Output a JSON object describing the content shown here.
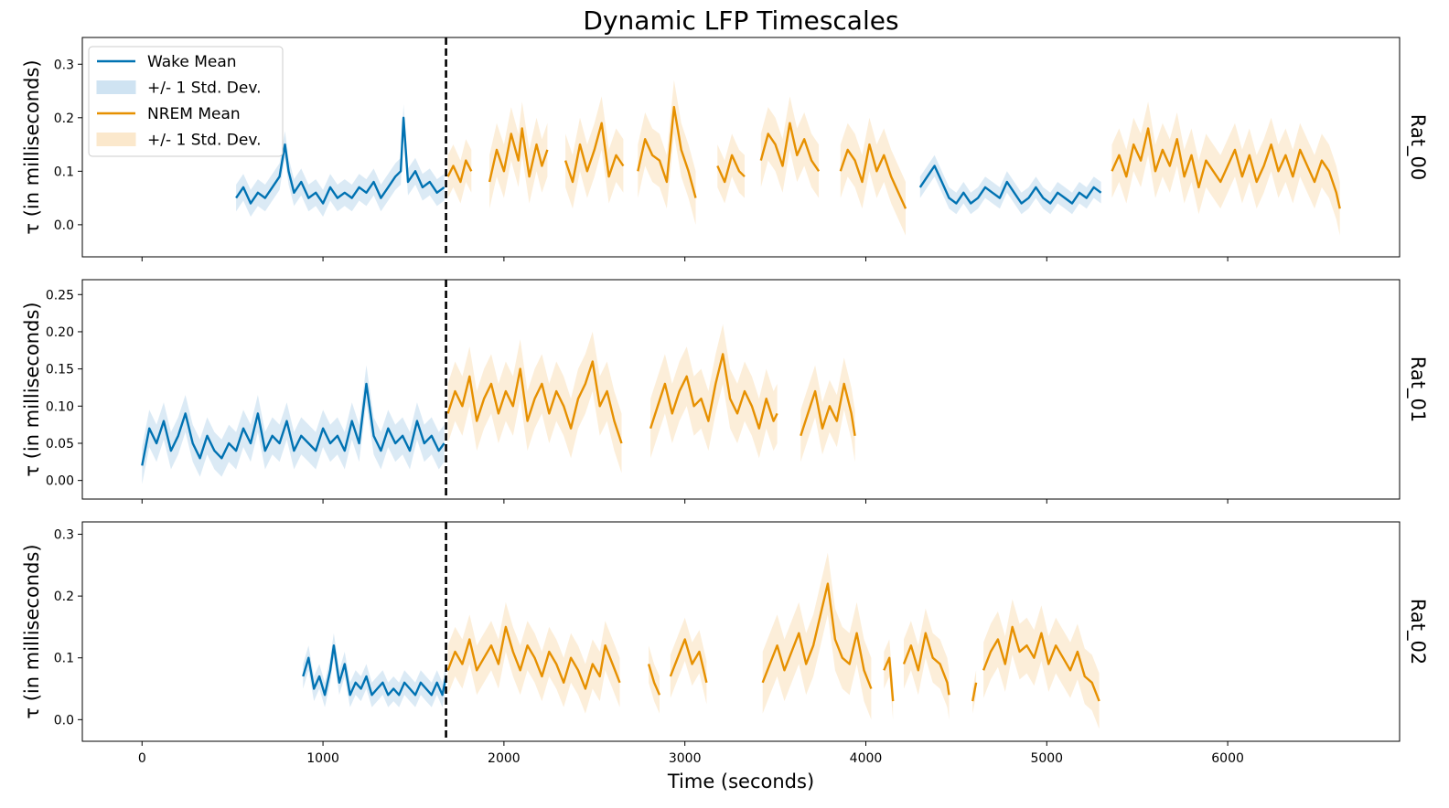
{
  "chart_data": {
    "type": "line",
    "title": "Dynamic LFP Timescales",
    "xlabel": "Time (seconds)",
    "xlim": [
      -330,
      6950
    ],
    "xticks": [
      0,
      1000,
      2000,
      3000,
      4000,
      5000,
      6000
    ],
    "sleep_onset_marker_x": 1680,
    "colors": {
      "wake": "#0072b2",
      "nrem": "#e69000",
      "wake_band": "#cfe3f2",
      "nrem_band": "#fbe8cc",
      "marker": "#000000"
    },
    "legend": {
      "placement": "top-left",
      "entries": [
        {
          "label": "Wake Mean",
          "kind": "line",
          "state": "wake"
        },
        {
          "label": "+/- 1 Std. Dev.",
          "kind": "band",
          "state": "wake"
        },
        {
          "label": "NREM Mean",
          "kind": "line",
          "state": "nrem"
        },
        {
          "label": "+/- 1 Std. Dev.",
          "kind": "band",
          "state": "nrem"
        }
      ]
    },
    "panels": [
      {
        "name": "Rat_00",
        "ylabel": "τ (in milliseconds)",
        "ylim": [
          -0.06,
          0.35
        ],
        "yticks": [
          0.0,
          0.1,
          0.2,
          0.3
        ],
        "ytick_labels": [
          "0.0",
          "0.1",
          "0.2",
          "0.3"
        ],
        "series": [
          {
            "state": "wake",
            "x": [
              520,
              560,
              600,
              640,
              680,
              720,
              760,
              790,
              810,
              840,
              880,
              920,
              960,
              1000,
              1040,
              1080,
              1120,
              1160,
              1200,
              1240,
              1280,
              1320,
              1360,
              1400,
              1430,
              1445,
              1470,
              1510,
              1550,
              1590,
              1630,
              1670
            ],
            "y": [
              0.05,
              0.07,
              0.04,
              0.06,
              0.05,
              0.07,
              0.09,
              0.15,
              0.1,
              0.06,
              0.08,
              0.05,
              0.06,
              0.04,
              0.07,
              0.05,
              0.06,
              0.05,
              0.07,
              0.06,
              0.08,
              0.05,
              0.07,
              0.09,
              0.1,
              0.2,
              0.08,
              0.1,
              0.07,
              0.08,
              0.06,
              0.07
            ],
            "sd": 0.025
          },
          {
            "state": "nrem",
            "x": [
              1690,
              1720,
              1760,
              1790,
              1820
            ],
            "y": [
              0.09,
              0.11,
              0.08,
              0.12,
              0.1
            ],
            "sd": 0.04
          },
          {
            "state": "nrem",
            "x": [
              1920,
              1960,
              2000,
              2040,
              2080,
              2100,
              2140,
              2180,
              2210,
              2240
            ],
            "y": [
              0.08,
              0.14,
              0.1,
              0.17,
              0.12,
              0.18,
              0.09,
              0.15,
              0.11,
              0.14
            ],
            "sd": 0.05
          },
          {
            "state": "nrem",
            "x": [
              2340,
              2380,
              2420,
              2460,
              2500,
              2540,
              2580,
              2620,
              2660
            ],
            "y": [
              0.12,
              0.08,
              0.15,
              0.1,
              0.14,
              0.19,
              0.09,
              0.13,
              0.11
            ],
            "sd": 0.05
          },
          {
            "state": "nrem",
            "x": [
              2740,
              2780,
              2820,
              2860,
              2900,
              2940,
              2980,
              3020,
              3060
            ],
            "y": [
              0.1,
              0.16,
              0.13,
              0.12,
              0.08,
              0.22,
              0.14,
              0.1,
              0.05
            ],
            "sd": 0.05
          },
          {
            "state": "nrem",
            "x": [
              3180,
              3220,
              3260,
              3300,
              3330
            ],
            "y": [
              0.11,
              0.08,
              0.13,
              0.1,
              0.09
            ],
            "sd": 0.04
          },
          {
            "state": "nrem",
            "x": [
              3420,
              3460,
              3500,
              3540,
              3580,
              3620,
              3660,
              3700,
              3740
            ],
            "y": [
              0.12,
              0.17,
              0.15,
              0.11,
              0.19,
              0.13,
              0.16,
              0.12,
              0.1
            ],
            "sd": 0.05
          },
          {
            "state": "nrem",
            "x": [
              3860,
              3900,
              3940,
              3980,
              4020,
              4060,
              4100,
              4140,
              4180,
              4220
            ],
            "y": [
              0.1,
              0.14,
              0.12,
              0.08,
              0.15,
              0.1,
              0.13,
              0.09,
              0.06,
              0.03
            ],
            "sd": 0.05
          },
          {
            "state": "wake",
            "x": [
              4300,
              4340,
              4380,
              4420,
              4460,
              4500,
              4540,
              4580,
              4620,
              4660,
              4700,
              4740,
              4780,
              4820,
              4860,
              4900,
              4940,
              4980,
              5020,
              5060,
              5100,
              5140,
              5180,
              5220,
              5260,
              5300
            ],
            "y": [
              0.07,
              0.09,
              0.11,
              0.08,
              0.05,
              0.04,
              0.06,
              0.04,
              0.05,
              0.07,
              0.06,
              0.05,
              0.08,
              0.06,
              0.04,
              0.05,
              0.07,
              0.05,
              0.04,
              0.06,
              0.05,
              0.04,
              0.06,
              0.05,
              0.07,
              0.06
            ],
            "sd": 0.02
          },
          {
            "state": "nrem",
            "x": [
              5360,
              5400,
              5440,
              5480,
              5520,
              5560,
              5600,
              5640,
              5680,
              5720,
              5760,
              5800,
              5840,
              5880,
              5920,
              5960,
              6000,
              6040,
              6080,
              6120,
              6160,
              6200,
              6240,
              6280,
              6320,
              6360,
              6400,
              6440,
              6480,
              6520,
              6560,
              6600,
              6620
            ],
            "y": [
              0.1,
              0.13,
              0.09,
              0.15,
              0.12,
              0.18,
              0.1,
              0.14,
              0.11,
              0.16,
              0.09,
              0.13,
              0.07,
              0.12,
              0.1,
              0.08,
              0.11,
              0.14,
              0.09,
              0.13,
              0.08,
              0.11,
              0.15,
              0.1,
              0.13,
              0.09,
              0.14,
              0.11,
              0.08,
              0.12,
              0.1,
              0.06,
              0.03
            ],
            "sd": 0.05
          }
        ]
      },
      {
        "name": "Rat_01",
        "ylabel": "τ (in milliseconds)",
        "ylim": [
          -0.025,
          0.27
        ],
        "yticks": [
          0.0,
          0.05,
          0.1,
          0.15,
          0.2,
          0.25
        ],
        "ytick_labels": [
          "0.00",
          "0.05",
          "0.10",
          "0.15",
          "0.20",
          "0.25"
        ],
        "series": [
          {
            "state": "wake",
            "x": [
              0,
              40,
              80,
              120,
              160,
              200,
              240,
              280,
              320,
              360,
              400,
              440,
              480,
              520,
              560,
              600,
              640,
              680,
              720,
              760,
              800,
              840,
              880,
              920,
              960,
              1000,
              1040,
              1080,
              1120,
              1160,
              1200,
              1240,
              1280,
              1320,
              1360,
              1400,
              1440,
              1480,
              1520,
              1560,
              1600,
              1640,
              1670
            ],
            "y": [
              0.02,
              0.07,
              0.05,
              0.08,
              0.04,
              0.06,
              0.09,
              0.05,
              0.03,
              0.06,
              0.04,
              0.03,
              0.05,
              0.04,
              0.07,
              0.05,
              0.09,
              0.04,
              0.06,
              0.05,
              0.08,
              0.04,
              0.06,
              0.05,
              0.04,
              0.07,
              0.05,
              0.06,
              0.04,
              0.08,
              0.05,
              0.13,
              0.06,
              0.04,
              0.07,
              0.05,
              0.06,
              0.04,
              0.08,
              0.05,
              0.06,
              0.04,
              0.05
            ],
            "sd": 0.025
          },
          {
            "state": "nrem",
            "x": [
              1690,
              1730,
              1770,
              1810,
              1850,
              1890,
              1930,
              1970,
              2010,
              2050,
              2090,
              2130,
              2170,
              2210,
              2250,
              2290,
              2330,
              2370,
              2410,
              2450,
              2490,
              2530,
              2570,
              2610,
              2650
            ],
            "y": [
              0.09,
              0.12,
              0.1,
              0.14,
              0.08,
              0.11,
              0.13,
              0.09,
              0.12,
              0.1,
              0.15,
              0.08,
              0.11,
              0.13,
              0.09,
              0.12,
              0.1,
              0.07,
              0.11,
              0.13,
              0.16,
              0.1,
              0.12,
              0.08,
              0.05
            ],
            "sd": 0.04
          },
          {
            "state": "nrem",
            "x": [
              2810,
              2850,
              2890,
              2930,
              2970,
              3010,
              3050,
              3090,
              3130,
              3170,
              3210,
              3250,
              3290,
              3330,
              3370,
              3410,
              3450,
              3490,
              3510
            ],
            "y": [
              0.07,
              0.1,
              0.13,
              0.09,
              0.12,
              0.14,
              0.1,
              0.11,
              0.08,
              0.13,
              0.17,
              0.11,
              0.09,
              0.12,
              0.1,
              0.07,
              0.11,
              0.08,
              0.09
            ],
            "sd": 0.04
          },
          {
            "state": "nrem",
            "x": [
              3640,
              3680,
              3720,
              3760,
              3800,
              3840,
              3880,
              3920,
              3940
            ],
            "y": [
              0.06,
              0.09,
              0.12,
              0.07,
              0.1,
              0.08,
              0.13,
              0.09,
              0.06
            ],
            "sd": 0.035
          }
        ]
      },
      {
        "name": "Rat_02",
        "ylabel": "τ (in milliseconds)",
        "ylim": [
          -0.035,
          0.32
        ],
        "yticks": [
          0.0,
          0.1,
          0.2,
          0.3
        ],
        "ytick_labels": [
          "0.0",
          "0.1",
          "0.2",
          "0.3"
        ],
        "series": [
          {
            "state": "wake",
            "x": [
              890,
              920,
              950,
              980,
              1010,
              1040,
              1060,
              1090,
              1120,
              1150,
              1180,
              1210,
              1240,
              1270,
              1300,
              1330,
              1360,
              1390,
              1420,
              1450,
              1480,
              1510,
              1540,
              1570,
              1600,
              1630,
              1660,
              1680
            ],
            "y": [
              0.07,
              0.1,
              0.05,
              0.07,
              0.04,
              0.08,
              0.12,
              0.06,
              0.09,
              0.04,
              0.06,
              0.05,
              0.07,
              0.04,
              0.05,
              0.06,
              0.04,
              0.05,
              0.04,
              0.06,
              0.05,
              0.04,
              0.06,
              0.05,
              0.04,
              0.06,
              0.04,
              0.07
            ],
            "sd": 0.02
          },
          {
            "state": "nrem",
            "x": [
              1690,
              1730,
              1770,
              1810,
              1850,
              1890,
              1930,
              1970,
              2010,
              2050,
              2090,
              2130,
              2170,
              2210,
              2250,
              2290,
              2330,
              2370,
              2410,
              2450,
              2490,
              2530,
              2560,
              2600,
              2640
            ],
            "y": [
              0.08,
              0.11,
              0.09,
              0.13,
              0.08,
              0.1,
              0.12,
              0.09,
              0.15,
              0.11,
              0.08,
              0.12,
              0.1,
              0.07,
              0.11,
              0.09,
              0.06,
              0.1,
              0.08,
              0.05,
              0.09,
              0.07,
              0.12,
              0.09,
              0.06
            ],
            "sd": 0.04
          },
          {
            "state": "nrem",
            "x": [
              2800,
              2830,
              2860
            ],
            "y": [
              0.09,
              0.06,
              0.04
            ],
            "sd": 0.03
          },
          {
            "state": "nrem",
            "x": [
              2920,
              2960,
              3000,
              3040,
              3080,
              3120
            ],
            "y": [
              0.07,
              0.1,
              0.13,
              0.09,
              0.11,
              0.06
            ],
            "sd": 0.035
          },
          {
            "state": "nrem",
            "x": [
              3430,
              3470,
              3510,
              3550,
              3590,
              3630,
              3670,
              3710,
              3750,
              3790,
              3830,
              3870,
              3910,
              3950,
              3990,
              4030
            ],
            "y": [
              0.06,
              0.09,
              0.12,
              0.08,
              0.11,
              0.14,
              0.09,
              0.12,
              0.17,
              0.22,
              0.13,
              0.1,
              0.09,
              0.14,
              0.08,
              0.05
            ],
            "sd": 0.05
          },
          {
            "state": "nrem",
            "x": [
              4100,
              4130,
              4150
            ],
            "y": [
              0.08,
              0.1,
              0.03
            ],
            "sd": 0.03
          },
          {
            "state": "nrem",
            "x": [
              4210,
              4250,
              4290,
              4330,
              4370,
              4410,
              4450,
              4460
            ],
            "y": [
              0.09,
              0.12,
              0.08,
              0.14,
              0.1,
              0.09,
              0.06,
              0.04
            ],
            "sd": 0.04
          },
          {
            "state": "nrem",
            "x": [
              4590,
              4610
            ],
            "y": [
              0.03,
              0.06
            ],
            "sd": 0.02
          },
          {
            "state": "nrem",
            "x": [
              4650,
              4690,
              4730,
              4770,
              4810,
              4850,
              4890,
              4930,
              4970,
              5010,
              5050,
              5090,
              5130,
              5170,
              5210,
              5250,
              5290
            ],
            "y": [
              0.08,
              0.11,
              0.13,
              0.09,
              0.15,
              0.11,
              0.12,
              0.1,
              0.14,
              0.09,
              0.12,
              0.1,
              0.08,
              0.11,
              0.07,
              0.06,
              0.03
            ],
            "sd": 0.045
          }
        ]
      }
    ]
  }
}
